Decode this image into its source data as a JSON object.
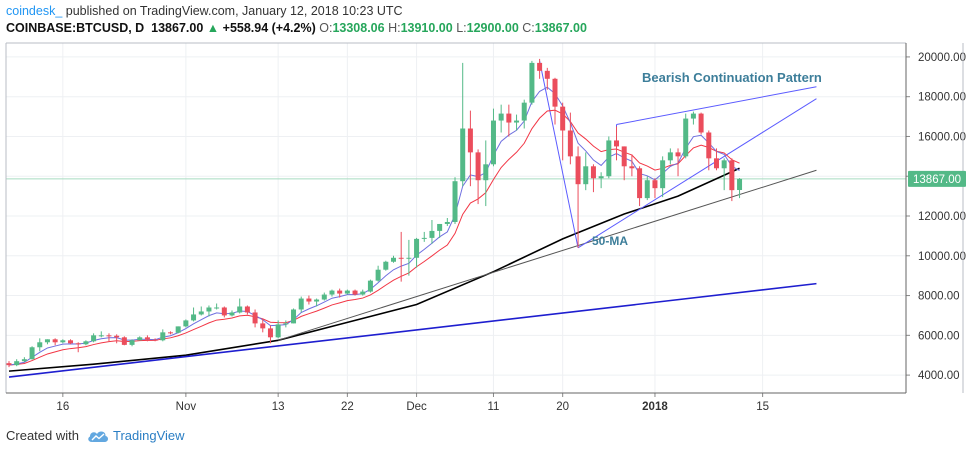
{
  "header": {
    "author": "coindesk_",
    "published": " published on TradingView.com, January 12, 2018 10:23 UTC",
    "symbol": "COINBASE:BTCUSD, D",
    "last": "13867.00",
    "change_arrow": "▲",
    "change": "+558.94 (+4.2%)",
    "open_label": "O:",
    "open": "13308.06",
    "high_label": "H:",
    "high": "13910.00",
    "low_label": "L:",
    "low": "12900.00",
    "close_label": "C:",
    "close": "13867.00"
  },
  "footer": {
    "created_with": "Created with",
    "brand": "TradingView"
  },
  "colors": {
    "up": "#53b987",
    "down": "#eb4d5c",
    "ma_fast": "#f23645",
    "ma_slow": "#6f6fe0",
    "ma50": "#000000",
    "trend_blue": "#1e1ecf",
    "trend_gray": "#555555",
    "pattern": "#5b5bff",
    "annotation": "#3d7e9a",
    "price_tag": "#53b987"
  },
  "chart_data": {
    "type": "candlestick",
    "title": "Bearish Continuation Pattern",
    "annotation_ma": "50-MA",
    "x_tick_labels": [
      "16",
      "Nov",
      "13",
      "22",
      "Dec",
      "11",
      "20",
      "2018",
      "15"
    ],
    "y_tick_labels": [
      "4000.00",
      "6000.00",
      "8000.00",
      "10000.00",
      "12000.00",
      "14000.00",
      "16000.00",
      "18000.00",
      "20000.00"
    ],
    "last_price_label": "13867.00",
    "ylim": [
      3100,
      20700
    ],
    "x_ticks": [
      {
        "label": "16",
        "date": "2017-10-16"
      },
      {
        "label": "Nov",
        "date": "2017-11-01"
      },
      {
        "label": "13",
        "date": "2017-11-13"
      },
      {
        "label": "22",
        "date": "2017-11-22"
      },
      {
        "label": "Dec",
        "date": "2017-12-01"
      },
      {
        "label": "11",
        "date": "2017-12-11"
      },
      {
        "label": "20",
        "date": "2017-12-20"
      },
      {
        "label": "2018",
        "date": "2018-01-01"
      },
      {
        "label": "15",
        "date": "2018-01-15"
      }
    ],
    "candles": [
      {
        "date": "2017-10-09",
        "o": 4600,
        "h": 4700,
        "l": 4400,
        "c": 4500
      },
      {
        "date": "2017-10-10",
        "o": 4500,
        "h": 4800,
        "l": 4450,
        "c": 4700
      },
      {
        "date": "2017-10-11",
        "o": 4700,
        "h": 4900,
        "l": 4650,
        "c": 4800
      },
      {
        "date": "2017-10-12",
        "o": 4800,
        "h": 5450,
        "l": 4780,
        "c": 5400
      },
      {
        "date": "2017-10-13",
        "o": 5400,
        "h": 5850,
        "l": 5200,
        "c": 5650
      },
      {
        "date": "2017-10-14",
        "o": 5650,
        "h": 5800,
        "l": 5550,
        "c": 5800
      },
      {
        "date": "2017-10-15",
        "o": 5800,
        "h": 5850,
        "l": 5500,
        "c": 5650
      },
      {
        "date": "2017-10-16",
        "o": 5650,
        "h": 5800,
        "l": 5600,
        "c": 5750
      },
      {
        "date": "2017-10-17",
        "o": 5750,
        "h": 5800,
        "l": 5550,
        "c": 5600
      },
      {
        "date": "2017-10-18",
        "o": 5600,
        "h": 5650,
        "l": 5150,
        "c": 5550
      },
      {
        "date": "2017-10-19",
        "o": 5550,
        "h": 5750,
        "l": 5500,
        "c": 5700
      },
      {
        "date": "2017-10-20",
        "o": 5700,
        "h": 6100,
        "l": 5650,
        "c": 6000
      },
      {
        "date": "2017-10-21",
        "o": 6000,
        "h": 6200,
        "l": 5900,
        "c": 6000
      },
      {
        "date": "2017-10-22",
        "o": 6000,
        "h": 6100,
        "l": 5700,
        "c": 5980
      },
      {
        "date": "2017-10-23",
        "o": 5980,
        "h": 6050,
        "l": 5600,
        "c": 5900
      },
      {
        "date": "2017-10-24",
        "o": 5900,
        "h": 5950,
        "l": 5500,
        "c": 5520
      },
      {
        "date": "2017-10-25",
        "o": 5520,
        "h": 5800,
        "l": 5450,
        "c": 5750
      },
      {
        "date": "2017-10-26",
        "o": 5750,
        "h": 5950,
        "l": 5750,
        "c": 5900
      },
      {
        "date": "2017-10-27",
        "o": 5900,
        "h": 6000,
        "l": 5700,
        "c": 5780
      },
      {
        "date": "2017-10-28",
        "o": 5780,
        "h": 5850,
        "l": 5700,
        "c": 5750
      },
      {
        "date": "2017-10-29",
        "o": 5750,
        "h": 6300,
        "l": 5700,
        "c": 6150
      },
      {
        "date": "2017-10-30",
        "o": 6150,
        "h": 6200,
        "l": 6050,
        "c": 6130
      },
      {
        "date": "2017-10-31",
        "o": 6130,
        "h": 6450,
        "l": 6100,
        "c": 6450
      },
      {
        "date": "2017-11-01",
        "o": 6450,
        "h": 6800,
        "l": 6400,
        "c": 6750
      },
      {
        "date": "2017-11-02",
        "o": 6750,
        "h": 7400,
        "l": 6700,
        "c": 7050
      },
      {
        "date": "2017-11-03",
        "o": 7050,
        "h": 7450,
        "l": 7000,
        "c": 7200
      },
      {
        "date": "2017-11-04",
        "o": 7200,
        "h": 7500,
        "l": 6950,
        "c": 7400
      },
      {
        "date": "2017-11-05",
        "o": 7400,
        "h": 7600,
        "l": 7300,
        "c": 7400
      },
      {
        "date": "2017-11-06",
        "o": 7400,
        "h": 7450,
        "l": 6900,
        "c": 7000
      },
      {
        "date": "2017-11-07",
        "o": 7000,
        "h": 7250,
        "l": 6950,
        "c": 7150
      },
      {
        "date": "2017-11-08",
        "o": 7150,
        "h": 7850,
        "l": 7100,
        "c": 7450
      },
      {
        "date": "2017-11-09",
        "o": 7450,
        "h": 7500,
        "l": 7050,
        "c": 7150
      },
      {
        "date": "2017-11-10",
        "o": 7150,
        "h": 7300,
        "l": 6400,
        "c": 6600
      },
      {
        "date": "2017-11-11",
        "o": 6600,
        "h": 6850,
        "l": 6150,
        "c": 6350
      },
      {
        "date": "2017-11-12",
        "o": 6350,
        "h": 6500,
        "l": 5600,
        "c": 5900
      },
      {
        "date": "2017-11-13",
        "o": 5900,
        "h": 6750,
        "l": 5850,
        "c": 6550
      },
      {
        "date": "2017-11-14",
        "o": 6550,
        "h": 6750,
        "l": 6400,
        "c": 6600
      },
      {
        "date": "2017-11-15",
        "o": 6600,
        "h": 7350,
        "l": 6600,
        "c": 7300
      },
      {
        "date": "2017-11-16",
        "o": 7300,
        "h": 7950,
        "l": 7150,
        "c": 7850
      },
      {
        "date": "2017-11-17",
        "o": 7850,
        "h": 8000,
        "l": 7550,
        "c": 7700
      },
      {
        "date": "2017-11-18",
        "o": 7700,
        "h": 7850,
        "l": 7450,
        "c": 7800
      },
      {
        "date": "2017-11-19",
        "o": 7800,
        "h": 8150,
        "l": 7750,
        "c": 8050
      },
      {
        "date": "2017-11-20",
        "o": 8050,
        "h": 8300,
        "l": 7950,
        "c": 8250
      },
      {
        "date": "2017-11-21",
        "o": 8250,
        "h": 8350,
        "l": 7900,
        "c": 8100
      },
      {
        "date": "2017-11-22",
        "o": 8100,
        "h": 8300,
        "l": 8050,
        "c": 8250
      },
      {
        "date": "2017-11-23",
        "o": 8250,
        "h": 8300,
        "l": 8000,
        "c": 8050
      },
      {
        "date": "2017-11-24",
        "o": 8050,
        "h": 8300,
        "l": 8000,
        "c": 8200
      },
      {
        "date": "2017-11-25",
        "o": 8200,
        "h": 8800,
        "l": 8150,
        "c": 8750
      },
      {
        "date": "2017-11-26",
        "o": 8750,
        "h": 9500,
        "l": 8700,
        "c": 9300
      },
      {
        "date": "2017-11-27",
        "o": 9300,
        "h": 9750,
        "l": 9250,
        "c": 9700
      },
      {
        "date": "2017-11-28",
        "o": 9700,
        "h": 10000,
        "l": 9650,
        "c": 9900
      },
      {
        "date": "2017-11-29",
        "o": 9900,
        "h": 11200,
        "l": 8700,
        "c": 9850
      },
      {
        "date": "2017-11-30",
        "o": 9850,
        "h": 10800,
        "l": 9000,
        "c": 9900
      },
      {
        "date": "2017-12-01",
        "o": 9900,
        "h": 10900,
        "l": 9400,
        "c": 10850
      },
      {
        "date": "2017-12-02",
        "o": 10850,
        "h": 11200,
        "l": 10700,
        "c": 10900
      },
      {
        "date": "2017-12-03",
        "o": 10900,
        "h": 11800,
        "l": 10600,
        "c": 11250
      },
      {
        "date": "2017-12-04",
        "o": 11250,
        "h": 11600,
        "l": 10900,
        "c": 11600
      },
      {
        "date": "2017-12-05",
        "o": 11600,
        "h": 11900,
        "l": 11500,
        "c": 11700
      },
      {
        "date": "2017-12-06",
        "o": 11700,
        "h": 13950,
        "l": 11600,
        "c": 13750
      },
      {
        "date": "2017-12-07",
        "o": 13750,
        "h": 19700,
        "l": 13500,
        "c": 16400
      },
      {
        "date": "2017-12-08",
        "o": 16400,
        "h": 17300,
        "l": 13500,
        "c": 15200
      },
      {
        "date": "2017-12-09",
        "o": 15200,
        "h": 15350,
        "l": 12600,
        "c": 13800
      },
      {
        "date": "2017-12-10",
        "o": 13800,
        "h": 15800,
        "l": 12500,
        "c": 14600
      },
      {
        "date": "2017-12-11",
        "o": 14600,
        "h": 17400,
        "l": 14500,
        "c": 16800
      },
      {
        "date": "2017-12-12",
        "o": 16800,
        "h": 17600,
        "l": 16200,
        "c": 17150
      },
      {
        "date": "2017-12-13",
        "o": 17150,
        "h": 17600,
        "l": 16000,
        "c": 16700
      },
      {
        "date": "2017-12-14",
        "o": 16700,
        "h": 17100,
        "l": 16300,
        "c": 16800
      },
      {
        "date": "2017-12-15",
        "o": 16800,
        "h": 17850,
        "l": 16400,
        "c": 17700
      },
      {
        "date": "2017-12-16",
        "o": 17700,
        "h": 19800,
        "l": 17600,
        "c": 19700
      },
      {
        "date": "2017-12-17",
        "o": 19700,
        "h": 19900,
        "l": 18900,
        "c": 19300
      },
      {
        "date": "2017-12-18",
        "o": 19300,
        "h": 19450,
        "l": 18350,
        "c": 18900
      },
      {
        "date": "2017-12-19",
        "o": 18900,
        "h": 18950,
        "l": 16600,
        "c": 17500
      },
      {
        "date": "2017-12-20",
        "o": 17500,
        "h": 17700,
        "l": 14800,
        "c": 16300
      },
      {
        "date": "2017-12-21",
        "o": 16300,
        "h": 17200,
        "l": 14600,
        "c": 15000
      },
      {
        "date": "2017-12-22",
        "o": 15000,
        "h": 15500,
        "l": 10400,
        "c": 13600
      },
      {
        "date": "2017-12-23",
        "o": 13600,
        "h": 15200,
        "l": 13300,
        "c": 14500
      },
      {
        "date": "2017-12-24",
        "o": 14500,
        "h": 14600,
        "l": 13200,
        "c": 13900
      },
      {
        "date": "2017-12-25",
        "o": 13900,
        "h": 14200,
        "l": 13400,
        "c": 14000
      },
      {
        "date": "2017-12-26",
        "o": 14000,
        "h": 16000,
        "l": 13900,
        "c": 15800
      },
      {
        "date": "2017-12-27",
        "o": 15800,
        "h": 16500,
        "l": 14800,
        "c": 15500
      },
      {
        "date": "2017-12-28",
        "o": 15500,
        "h": 15500,
        "l": 13800,
        "c": 14500
      },
      {
        "date": "2017-12-29",
        "o": 14500,
        "h": 15100,
        "l": 14000,
        "c": 14400
      },
      {
        "date": "2017-12-30",
        "o": 14400,
        "h": 14500,
        "l": 12500,
        "c": 12900
      },
      {
        "date": "2017-12-31",
        "o": 12900,
        "h": 14000,
        "l": 12800,
        "c": 13800
      },
      {
        "date": "2018-01-01",
        "o": 13800,
        "h": 13900,
        "l": 12900,
        "c": 13400
      },
      {
        "date": "2018-01-02",
        "o": 13400,
        "h": 15000,
        "l": 12950,
        "c": 14800
      },
      {
        "date": "2018-01-03",
        "o": 14800,
        "h": 15400,
        "l": 14600,
        "c": 15200
      },
      {
        "date": "2018-01-04",
        "o": 15200,
        "h": 15400,
        "l": 14000,
        "c": 15000
      },
      {
        "date": "2018-01-05",
        "o": 15000,
        "h": 17150,
        "l": 14900,
        "c": 16900
      },
      {
        "date": "2018-01-06",
        "o": 16900,
        "h": 17250,
        "l": 16600,
        "c": 17150
      },
      {
        "date": "2018-01-07",
        "o": 17150,
        "h": 17200,
        "l": 16100,
        "c": 16200
      },
      {
        "date": "2018-01-08",
        "o": 16200,
        "h": 16300,
        "l": 14300,
        "c": 14900
      },
      {
        "date": "2018-01-09",
        "o": 14900,
        "h": 15400,
        "l": 14300,
        "c": 14400
      },
      {
        "date": "2018-01-10",
        "o": 14400,
        "h": 14900,
        "l": 13300,
        "c": 14800
      },
      {
        "date": "2018-01-11",
        "o": 14800,
        "h": 14900,
        "l": 12750,
        "c": 13300
      },
      {
        "date": "2018-01-12",
        "o": 13308.06,
        "h": 13910,
        "l": 12900,
        "c": 13867
      }
    ],
    "ma50": [
      {
        "date": "2017-10-09",
        "v": 4200
      },
      {
        "date": "2017-10-20",
        "v": 4550
      },
      {
        "date": "2017-11-01",
        "v": 5000
      },
      {
        "date": "2017-11-13",
        "v": 5750
      },
      {
        "date": "2017-11-22",
        "v": 6650
      },
      {
        "date": "2017-12-01",
        "v": 7550
      },
      {
        "date": "2017-12-11",
        "v": 9200
      },
      {
        "date": "2017-12-20",
        "v": 10850
      },
      {
        "date": "2017-12-28",
        "v": 12100
      },
      {
        "date": "2018-01-04",
        "v": 13000
      },
      {
        "date": "2018-01-12",
        "v": 14400
      }
    ],
    "trendlines": [
      {
        "name": "long-term-support",
        "from": {
          "date": "2017-10-09",
          "price": 3900
        },
        "to": {
          "date": "2018-01-22",
          "price": 8600
        }
      },
      {
        "name": "support-from-13",
        "from": {
          "date": "2017-11-13",
          "price": 5750
        },
        "to": {
          "date": "2018-01-22",
          "price": 14300
        }
      },
      {
        "name": "pattern-upper",
        "from": {
          "date": "2017-12-27",
          "price": 16600
        },
        "to": {
          "date": "2018-01-22",
          "price": 18500
        }
      },
      {
        "name": "pattern-lower",
        "from": {
          "date": "2017-12-22",
          "price": 10400
        },
        "to": {
          "date": "2018-01-22",
          "price": 17900
        }
      },
      {
        "name": "drop-line",
        "from": {
          "date": "2017-12-17",
          "price": 19800
        },
        "to": {
          "date": "2017-12-22",
          "price": 10400
        }
      }
    ]
  }
}
